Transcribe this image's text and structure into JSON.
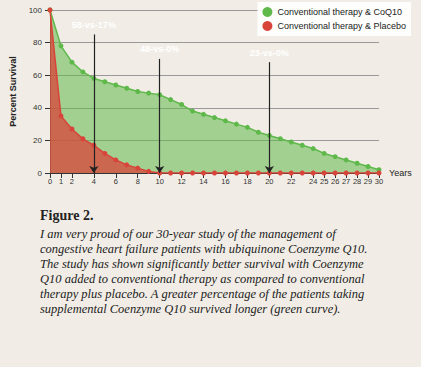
{
  "chart_data": {
    "type": "area",
    "y_label": "Percent Survival",
    "x_label": "Years",
    "x": [
      0,
      1,
      2,
      3,
      4,
      5,
      6,
      7,
      8,
      9,
      10,
      11,
      12,
      13,
      14,
      15,
      16,
      17,
      18,
      19,
      20,
      21,
      22,
      23,
      24,
      25,
      26,
      27,
      28,
      29,
      30
    ],
    "series": [
      {
        "name": "Conventional therapy & CoQ10",
        "color": "#5fb84a",
        "values": [
          100,
          78,
          68,
          62,
          58,
          56,
          54,
          52,
          50,
          49,
          48,
          45,
          42,
          38,
          36,
          34,
          32,
          30,
          28,
          25,
          23,
          21,
          19,
          17,
          15,
          12,
          10,
          8,
          6,
          4,
          2
        ]
      },
      {
        "name": "Conventional therapy & Placebo",
        "color": "#d9443a",
        "values": [
          100,
          35,
          27,
          21,
          17,
          12,
          8,
          5,
          3,
          1,
          0,
          0,
          0,
          0,
          0,
          0,
          0,
          0,
          0,
          0,
          0,
          0,
          0,
          0,
          0,
          0,
          0,
          0,
          0,
          0,
          0
        ]
      }
    ],
    "annotations": [
      {
        "text": "58-vs-17%",
        "x": 4,
        "y": 85
      },
      {
        "text": "48-vs-0%",
        "x": 10,
        "y": 70
      },
      {
        "text": "23-vs-0%",
        "x": 20,
        "y": 68
      }
    ],
    "xlim": [
      0,
      30
    ],
    "xticks": [
      0,
      1,
      2,
      4,
      6,
      8,
      10,
      12,
      14,
      16,
      18,
      20,
      22,
      24,
      25,
      26,
      27,
      28,
      29,
      30
    ],
    "ylim": [
      0,
      100
    ],
    "yticks": [
      0,
      20,
      40,
      60,
      80,
      100
    ],
    "grid": true,
    "legend": "top-right",
    "marker": "circle"
  },
  "caption": {
    "title": "Figure 2.",
    "text": "I am very proud of our 30-year study of the management of congestive heart failure patients with ubiquinone Coenzyme Q10. The study has shown significantly better survival with Coenzyme Q10 added to conventional therapy as compared to conventional therapy plus placebo. A greater percentage of the patients taking supplemental Coenzyme Q10 survived longer (green curve)."
  }
}
